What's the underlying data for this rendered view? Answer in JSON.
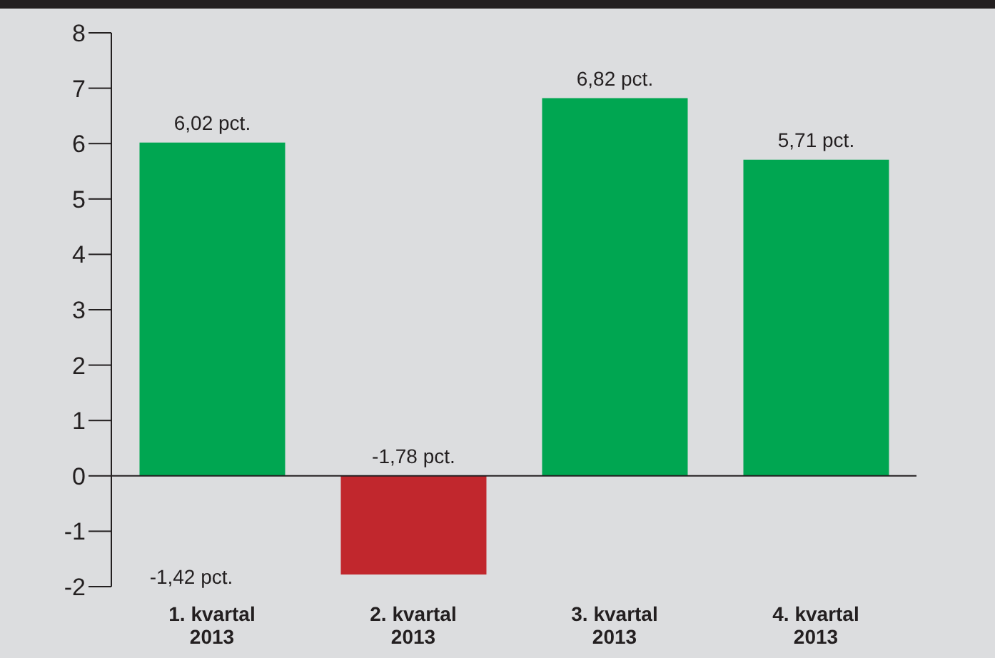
{
  "chart_data": {
    "type": "bar",
    "categories": [
      "1. kvartal 2013",
      "2. kvartal 2013",
      "3. kvartal 2013",
      "4. kvartal 2013"
    ],
    "values": [
      6.02,
      -1.78,
      6.82,
      5.71
    ],
    "colors": [
      "#00a651",
      "#c1272d",
      "#00a651",
      "#00a651"
    ],
    "value_labels": [
      "6,02 pct.",
      "-1,78 pct.",
      "6,82 pct.",
      "5,71 pct."
    ],
    "ylim": [
      -2,
      8
    ],
    "yticks": [
      -2,
      -1,
      0,
      1,
      2,
      3,
      4,
      5,
      6,
      7,
      8
    ],
    "ref_lines": [
      {
        "axis": "y",
        "value": 0,
        "color": "#231f20"
      }
    ],
    "annotations": [
      "-1,42 pct."
    ]
  }
}
